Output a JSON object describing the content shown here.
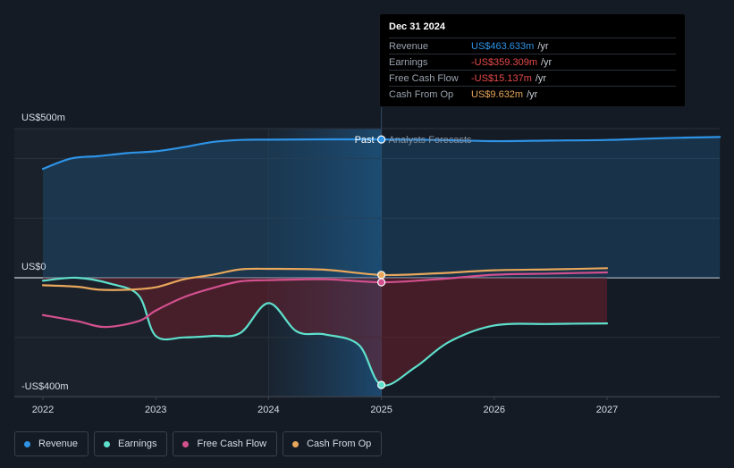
{
  "chart_data": {
    "type": "line",
    "y_axis": {
      "labels": [
        "US$500m",
        "US$0",
        "-US$400m"
      ],
      "ylim": [
        -400,
        500
      ],
      "unit": "USD millions"
    },
    "x_axis": {
      "tick_labels": [
        "2022",
        "2023",
        "2024",
        "2025",
        "2026",
        "2027"
      ],
      "xlim": [
        2021.8,
        2028.0
      ]
    },
    "divider": {
      "x": 2025.0,
      "past_label": "Past",
      "forecast_label": "Analysts Forecasts"
    },
    "series": [
      {
        "name": "Revenue",
        "color": "#2e93e6",
        "points": [
          [
            2022.0,
            365
          ],
          [
            2022.25,
            400
          ],
          [
            2022.5,
            408
          ],
          [
            2022.75,
            418
          ],
          [
            2023.0,
            424
          ],
          [
            2023.25,
            438
          ],
          [
            2023.5,
            455
          ],
          [
            2023.75,
            462
          ],
          [
            2024.0,
            463
          ],
          [
            2024.5,
            464
          ],
          [
            2025.0,
            463.6
          ],
          [
            2025.5,
            462
          ],
          [
            2026.0,
            458
          ],
          [
            2026.5,
            460
          ],
          [
            2027.0,
            462
          ],
          [
            2027.5,
            468
          ],
          [
            2028.0,
            472
          ]
        ]
      },
      {
        "name": "Earnings",
        "color": "#5ee0cc",
        "points": [
          [
            2022.0,
            -10
          ],
          [
            2022.3,
            0
          ],
          [
            2022.6,
            -20
          ],
          [
            2022.85,
            -60
          ],
          [
            2023.0,
            -195
          ],
          [
            2023.25,
            -200
          ],
          [
            2023.5,
            -195
          ],
          [
            2023.75,
            -185
          ],
          [
            2024.0,
            -85
          ],
          [
            2024.25,
            -180
          ],
          [
            2024.5,
            -190
          ],
          [
            2024.8,
            -225
          ],
          [
            2025.0,
            -359.3
          ],
          [
            2025.3,
            -300
          ],
          [
            2025.6,
            -215
          ],
          [
            2026.0,
            -160
          ],
          [
            2026.5,
            -155
          ],
          [
            2027.0,
            -153
          ]
        ]
      },
      {
        "name": "Free Cash Flow",
        "color": "#d3508e",
        "points": [
          [
            2022.0,
            -125
          ],
          [
            2022.3,
            -145
          ],
          [
            2022.55,
            -165
          ],
          [
            2022.85,
            -145
          ],
          [
            2023.0,
            -110
          ],
          [
            2023.25,
            -65
          ],
          [
            2023.5,
            -35
          ],
          [
            2023.75,
            -12
          ],
          [
            2024.0,
            -8
          ],
          [
            2024.5,
            -5
          ],
          [
            2025.0,
            -15.1
          ],
          [
            2025.5,
            -5
          ],
          [
            2026.0,
            10
          ],
          [
            2026.5,
            14
          ],
          [
            2027.0,
            18
          ]
        ]
      },
      {
        "name": "Cash From Op",
        "color": "#e8a75b",
        "points": [
          [
            2022.0,
            -25
          ],
          [
            2022.3,
            -30
          ],
          [
            2022.5,
            -40
          ],
          [
            2022.75,
            -40
          ],
          [
            2023.0,
            -32
          ],
          [
            2023.25,
            -5
          ],
          [
            2023.5,
            10
          ],
          [
            2023.75,
            28
          ],
          [
            2024.0,
            30
          ],
          [
            2024.5,
            27
          ],
          [
            2025.0,
            9.6
          ],
          [
            2025.5,
            15
          ],
          [
            2026.0,
            25
          ],
          [
            2026.5,
            28
          ],
          [
            2027.0,
            32
          ]
        ]
      }
    ],
    "grid": true,
    "legend_position": "bottom-left"
  },
  "tooltip": {
    "date": "Dec 31 2024",
    "rows": [
      {
        "name": "Revenue",
        "value": "US$463.633m",
        "unit": "/yr",
        "color": "#2e93e6"
      },
      {
        "name": "Earnings",
        "value": "-US$359.309m",
        "unit": "/yr",
        "color": "#e84a4a"
      },
      {
        "name": "Free Cash Flow",
        "value": "-US$15.137m",
        "unit": "/yr",
        "color": "#e84a4a"
      },
      {
        "name": "Cash From Op",
        "value": "US$9.632m",
        "unit": "/yr",
        "color": "#e8a75b"
      }
    ]
  },
  "legend": {
    "items": [
      {
        "label": "Revenue",
        "color": "#2e93e6"
      },
      {
        "label": "Earnings",
        "color": "#5ee0cc"
      },
      {
        "label": "Free Cash Flow",
        "color": "#d3508e"
      },
      {
        "label": "Cash From Op",
        "color": "#e8a75b"
      }
    ]
  }
}
